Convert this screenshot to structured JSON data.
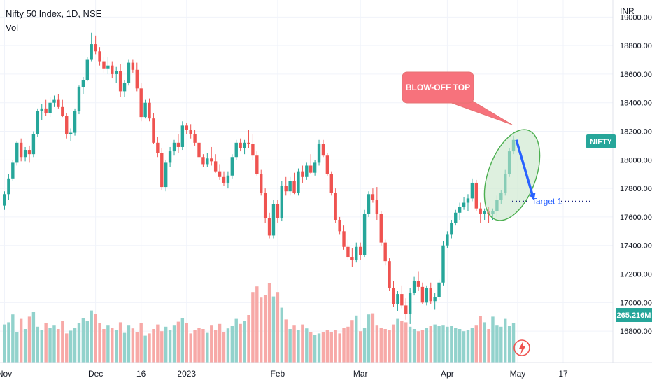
{
  "header": {
    "symbol_line": "Nifty 50 Index, 1D, NSE",
    "volume_label": "Vol"
  },
  "scale_currency": "INR",
  "ticker_badge": "NIFTY",
  "volume_badge": "265.216M",
  "colors": {
    "up": "#26a69a",
    "down": "#ef5350",
    "vol_up": "#92d2cc",
    "vol_down": "#f7a9a7",
    "callout_fill": "#f7727c",
    "ellipse_fill": "#c8e6c9",
    "ellipse_stroke": "#4caf50",
    "arrow": "#2962ff",
    "target_line": "#1a237e",
    "grid": "#f0f3fa",
    "axis_text": "#131722"
  },
  "annotations": {
    "callout_text": "BLOW-OFF TOP",
    "target_text": "Target 1"
  },
  "icons": {
    "watermark": "lightning-bolt-icon"
  },
  "chart_data": {
    "type": "candlestick",
    "title": "Nifty 50 Index, 1D, NSE",
    "y_axis_ticks": [
      16800,
      17000,
      17200,
      17400,
      17600,
      17800,
      18000,
      18200,
      18400,
      18600,
      18800,
      19000
    ],
    "y_axis_tick_labels": [
      "16800.00",
      "17000.00",
      "17200.00",
      "17400.00",
      "17600.00",
      "17800.00",
      "18000.00",
      "18200.00",
      "18400.00",
      "18600.00",
      "18800.00",
      "19000.00"
    ],
    "ylim": [
      16580,
      19080
    ],
    "x_axis_labels": [
      "Nov",
      "Dec",
      "16",
      "2023",
      "Feb",
      "Mar",
      "Apr",
      "May",
      "17"
    ],
    "x_axis_label_bar_index": [
      0,
      22,
      33,
      44,
      66,
      86,
      107,
      124,
      135
    ],
    "last_price": 18140,
    "last_volume": "265.216M",
    "target_level": 17710,
    "bars": [
      [
        17680,
        17780,
        17650,
        17760
      ],
      [
        17760,
        17900,
        17720,
        17870
      ],
      [
        17870,
        18000,
        17850,
        17980
      ],
      [
        17980,
        18130,
        17960,
        18120
      ],
      [
        18120,
        18150,
        17990,
        18020
      ],
      [
        18020,
        18090,
        17990,
        18070
      ],
      [
        18070,
        18100,
        17980,
        18040
      ],
      [
        18040,
        18200,
        18020,
        18180
      ],
      [
        18180,
        18360,
        18160,
        18340
      ],
      [
        18340,
        18390,
        18280,
        18360
      ],
      [
        18360,
        18420,
        18310,
        18330
      ],
      [
        18330,
        18440,
        18300,
        18400
      ],
      [
        18400,
        18450,
        18370,
        18420
      ],
      [
        18420,
        18460,
        18360,
        18370
      ],
      [
        18370,
        18420,
        18300,
        18310
      ],
      [
        18310,
        18330,
        18150,
        18180
      ],
      [
        18180,
        18220,
        18130,
        18190
      ],
      [
        18190,
        18360,
        18170,
        18340
      ],
      [
        18340,
        18520,
        18320,
        18510
      ],
      [
        18510,
        18580,
        18460,
        18560
      ],
      [
        18560,
        18720,
        18550,
        18700
      ],
      [
        18700,
        18890,
        18690,
        18810
      ],
      [
        18810,
        18870,
        18740,
        18760
      ],
      [
        18760,
        18790,
        18660,
        18690
      ],
      [
        18690,
        18720,
        18610,
        18640
      ],
      [
        18640,
        18720,
        18600,
        18660
      ],
      [
        18660,
        18690,
        18570,
        18600
      ],
      [
        18600,
        18650,
        18540,
        18620
      ],
      [
        18620,
        18670,
        18440,
        18480
      ],
      [
        18480,
        18560,
        18440,
        18540
      ],
      [
        18540,
        18700,
        18520,
        18680
      ],
      [
        18680,
        18700,
        18610,
        18630
      ],
      [
        18630,
        18680,
        18480,
        18500
      ],
      [
        18500,
        18540,
        18270,
        18300
      ],
      [
        18300,
        18420,
        18290,
        18400
      ],
      [
        18400,
        18430,
        18270,
        18290
      ],
      [
        18290,
        18330,
        18110,
        18120
      ],
      [
        18120,
        18160,
        18020,
        18050
      ],
      [
        18050,
        18080,
        17790,
        17810
      ],
      [
        17810,
        18000,
        17780,
        17980
      ],
      [
        17980,
        18090,
        17950,
        18060
      ],
      [
        18060,
        18140,
        18030,
        18120
      ],
      [
        18120,
        18180,
        18050,
        18090
      ],
      [
        18090,
        18270,
        18070,
        18240
      ],
      [
        18240,
        18260,
        18180,
        18210
      ],
      [
        18210,
        18250,
        18150,
        18180
      ],
      [
        18180,
        18210,
        18100,
        18120
      ],
      [
        18120,
        18140,
        18000,
        18020
      ],
      [
        18020,
        18040,
        17950,
        17970
      ],
      [
        17970,
        18050,
        17950,
        18010
      ],
      [
        18010,
        18090,
        17960,
        17990
      ],
      [
        17990,
        18040,
        17910,
        17920
      ],
      [
        17920,
        17970,
        17860,
        17880
      ],
      [
        17880,
        17920,
        17820,
        17840
      ],
      [
        17840,
        17920,
        17800,
        17890
      ],
      [
        17890,
        18040,
        17870,
        18020
      ],
      [
        18020,
        18140,
        18000,
        18120
      ],
      [
        18120,
        18150,
        18060,
        18080
      ],
      [
        18080,
        18140,
        18040,
        18120
      ],
      [
        18120,
        18210,
        18080,
        18110
      ],
      [
        18110,
        18180,
        18000,
        18030
      ],
      [
        18030,
        18060,
        17890,
        17900
      ],
      [
        17900,
        17930,
        17750,
        17770
      ],
      [
        17770,
        17800,
        17560,
        17590
      ],
      [
        17590,
        17630,
        17450,
        17470
      ],
      [
        17470,
        17720,
        17450,
        17690
      ],
      [
        17690,
        17720,
        17560,
        17590
      ],
      [
        17590,
        17850,
        17570,
        17820
      ],
      [
        17820,
        17880,
        17750,
        17780
      ],
      [
        17780,
        17880,
        17750,
        17850
      ],
      [
        17850,
        17910,
        17760,
        17770
      ],
      [
        17770,
        17940,
        17750,
        17920
      ],
      [
        17920,
        17960,
        17840,
        17880
      ],
      [
        17880,
        17980,
        17860,
        17960
      ],
      [
        17960,
        18040,
        17900,
        17910
      ],
      [
        17910,
        18000,
        17890,
        17980
      ],
      [
        17980,
        18140,
        17960,
        18110
      ],
      [
        18110,
        18140,
        18020,
        18030
      ],
      [
        18030,
        18050,
        17890,
        17900
      ],
      [
        17900,
        17920,
        17750,
        17770
      ],
      [
        17770,
        17800,
        17560,
        17580
      ],
      [
        17580,
        17600,
        17480,
        17500
      ],
      [
        17500,
        17540,
        17370,
        17390
      ],
      [
        17390,
        17440,
        17300,
        17320
      ],
      [
        17320,
        17380,
        17250,
        17300
      ],
      [
        17300,
        17420,
        17280,
        17390
      ],
      [
        17390,
        17420,
        17300,
        17330
      ],
      [
        17330,
        17650,
        17320,
        17620
      ],
      [
        17620,
        17780,
        17600,
        17760
      ],
      [
        17760,
        17800,
        17700,
        17720
      ],
      [
        17720,
        17810,
        17580,
        17620
      ],
      [
        17620,
        17640,
        17400,
        17420
      ],
      [
        17420,
        17440,
        17260,
        17290
      ],
      [
        17290,
        17310,
        17080,
        17100
      ],
      [
        17100,
        17150,
        16970,
        16990
      ],
      [
        16990,
        17080,
        16940,
        17060
      ],
      [
        17060,
        17120,
        16960,
        16980
      ],
      [
        16980,
        17030,
        16880,
        16920
      ],
      [
        16920,
        17100,
        16850,
        17070
      ],
      [
        17070,
        17180,
        17050,
        17150
      ],
      [
        17150,
        17220,
        17080,
        17110
      ],
      [
        17110,
        17140,
        16990,
        17000
      ],
      [
        17000,
        17120,
        16980,
        17100
      ],
      [
        17100,
        17140,
        16990,
        17010
      ],
      [
        17010,
        17070,
        16950,
        17040
      ],
      [
        17040,
        17160,
        17020,
        17140
      ],
      [
        17140,
        17430,
        17120,
        17400
      ],
      [
        17400,
        17500,
        17380,
        17480
      ],
      [
        17480,
        17580,
        17450,
        17560
      ],
      [
        17560,
        17650,
        17540,
        17630
      ],
      [
        17630,
        17700,
        17580,
        17670
      ],
      [
        17670,
        17740,
        17650,
        17700
      ],
      [
        17700,
        17760,
        17640,
        17730
      ],
      [
        17730,
        17870,
        17710,
        17840
      ],
      [
        17840,
        17860,
        17640,
        17660
      ],
      [
        17660,
        17700,
        17560,
        17620
      ],
      [
        17620,
        17660,
        17580,
        17640
      ],
      [
        17640,
        17670,
        17560,
        17620
      ],
      [
        17620,
        17660,
        17580,
        17640
      ],
      [
        17640,
        17750,
        17600,
        17720
      ],
      [
        17720,
        17790,
        17690,
        17770
      ],
      [
        17770,
        17930,
        17750,
        17900
      ],
      [
        17900,
        18080,
        17880,
        18060
      ],
      [
        18060,
        18170,
        18040,
        18140
      ]
    ],
    "volume_relative": [
      0.68,
      0.72,
      0.86,
      0.55,
      0.78,
      0.6,
      0.82,
      0.9,
      0.64,
      0.58,
      0.7,
      0.62,
      0.66,
      0.6,
      0.74,
      0.52,
      0.57,
      0.62,
      0.71,
      0.8,
      0.75,
      0.93,
      0.87,
      0.7,
      0.6,
      0.66,
      0.62,
      0.58,
      0.72,
      0.53,
      0.66,
      0.61,
      0.55,
      0.7,
      0.48,
      0.52,
      0.6,
      0.68,
      0.56,
      0.64,
      0.58,
      0.66,
      0.73,
      0.79,
      0.7,
      0.52,
      0.58,
      0.62,
      0.6,
      0.53,
      0.66,
      0.58,
      0.69,
      0.55,
      0.61,
      0.65,
      0.78,
      0.69,
      0.74,
      0.85,
      1.26,
      1.36,
      1.16,
      1.2,
      1.42,
      1.18,
      1.26,
      0.98,
      0.77,
      0.6,
      0.66,
      0.58,
      0.68,
      0.61,
      0.55,
      0.5,
      0.52,
      0.54,
      0.58,
      0.55,
      0.58,
      0.52,
      0.62,
      0.64,
      0.76,
      0.84,
      0.56,
      0.62,
      0.86,
      0.88,
      0.66,
      0.62,
      0.6,
      0.58,
      0.68,
      0.78,
      0.74,
      0.72,
      0.64,
      0.6,
      0.56,
      0.58,
      0.62,
      0.65,
      0.68,
      0.65,
      0.66,
      0.64,
      0.65,
      0.62,
      0.6,
      0.56,
      0.58,
      0.62,
      0.66,
      0.83,
      0.72,
      0.6,
      0.82,
      0.66,
      0.64,
      0.78,
      0.65,
      0.7
    ]
  }
}
